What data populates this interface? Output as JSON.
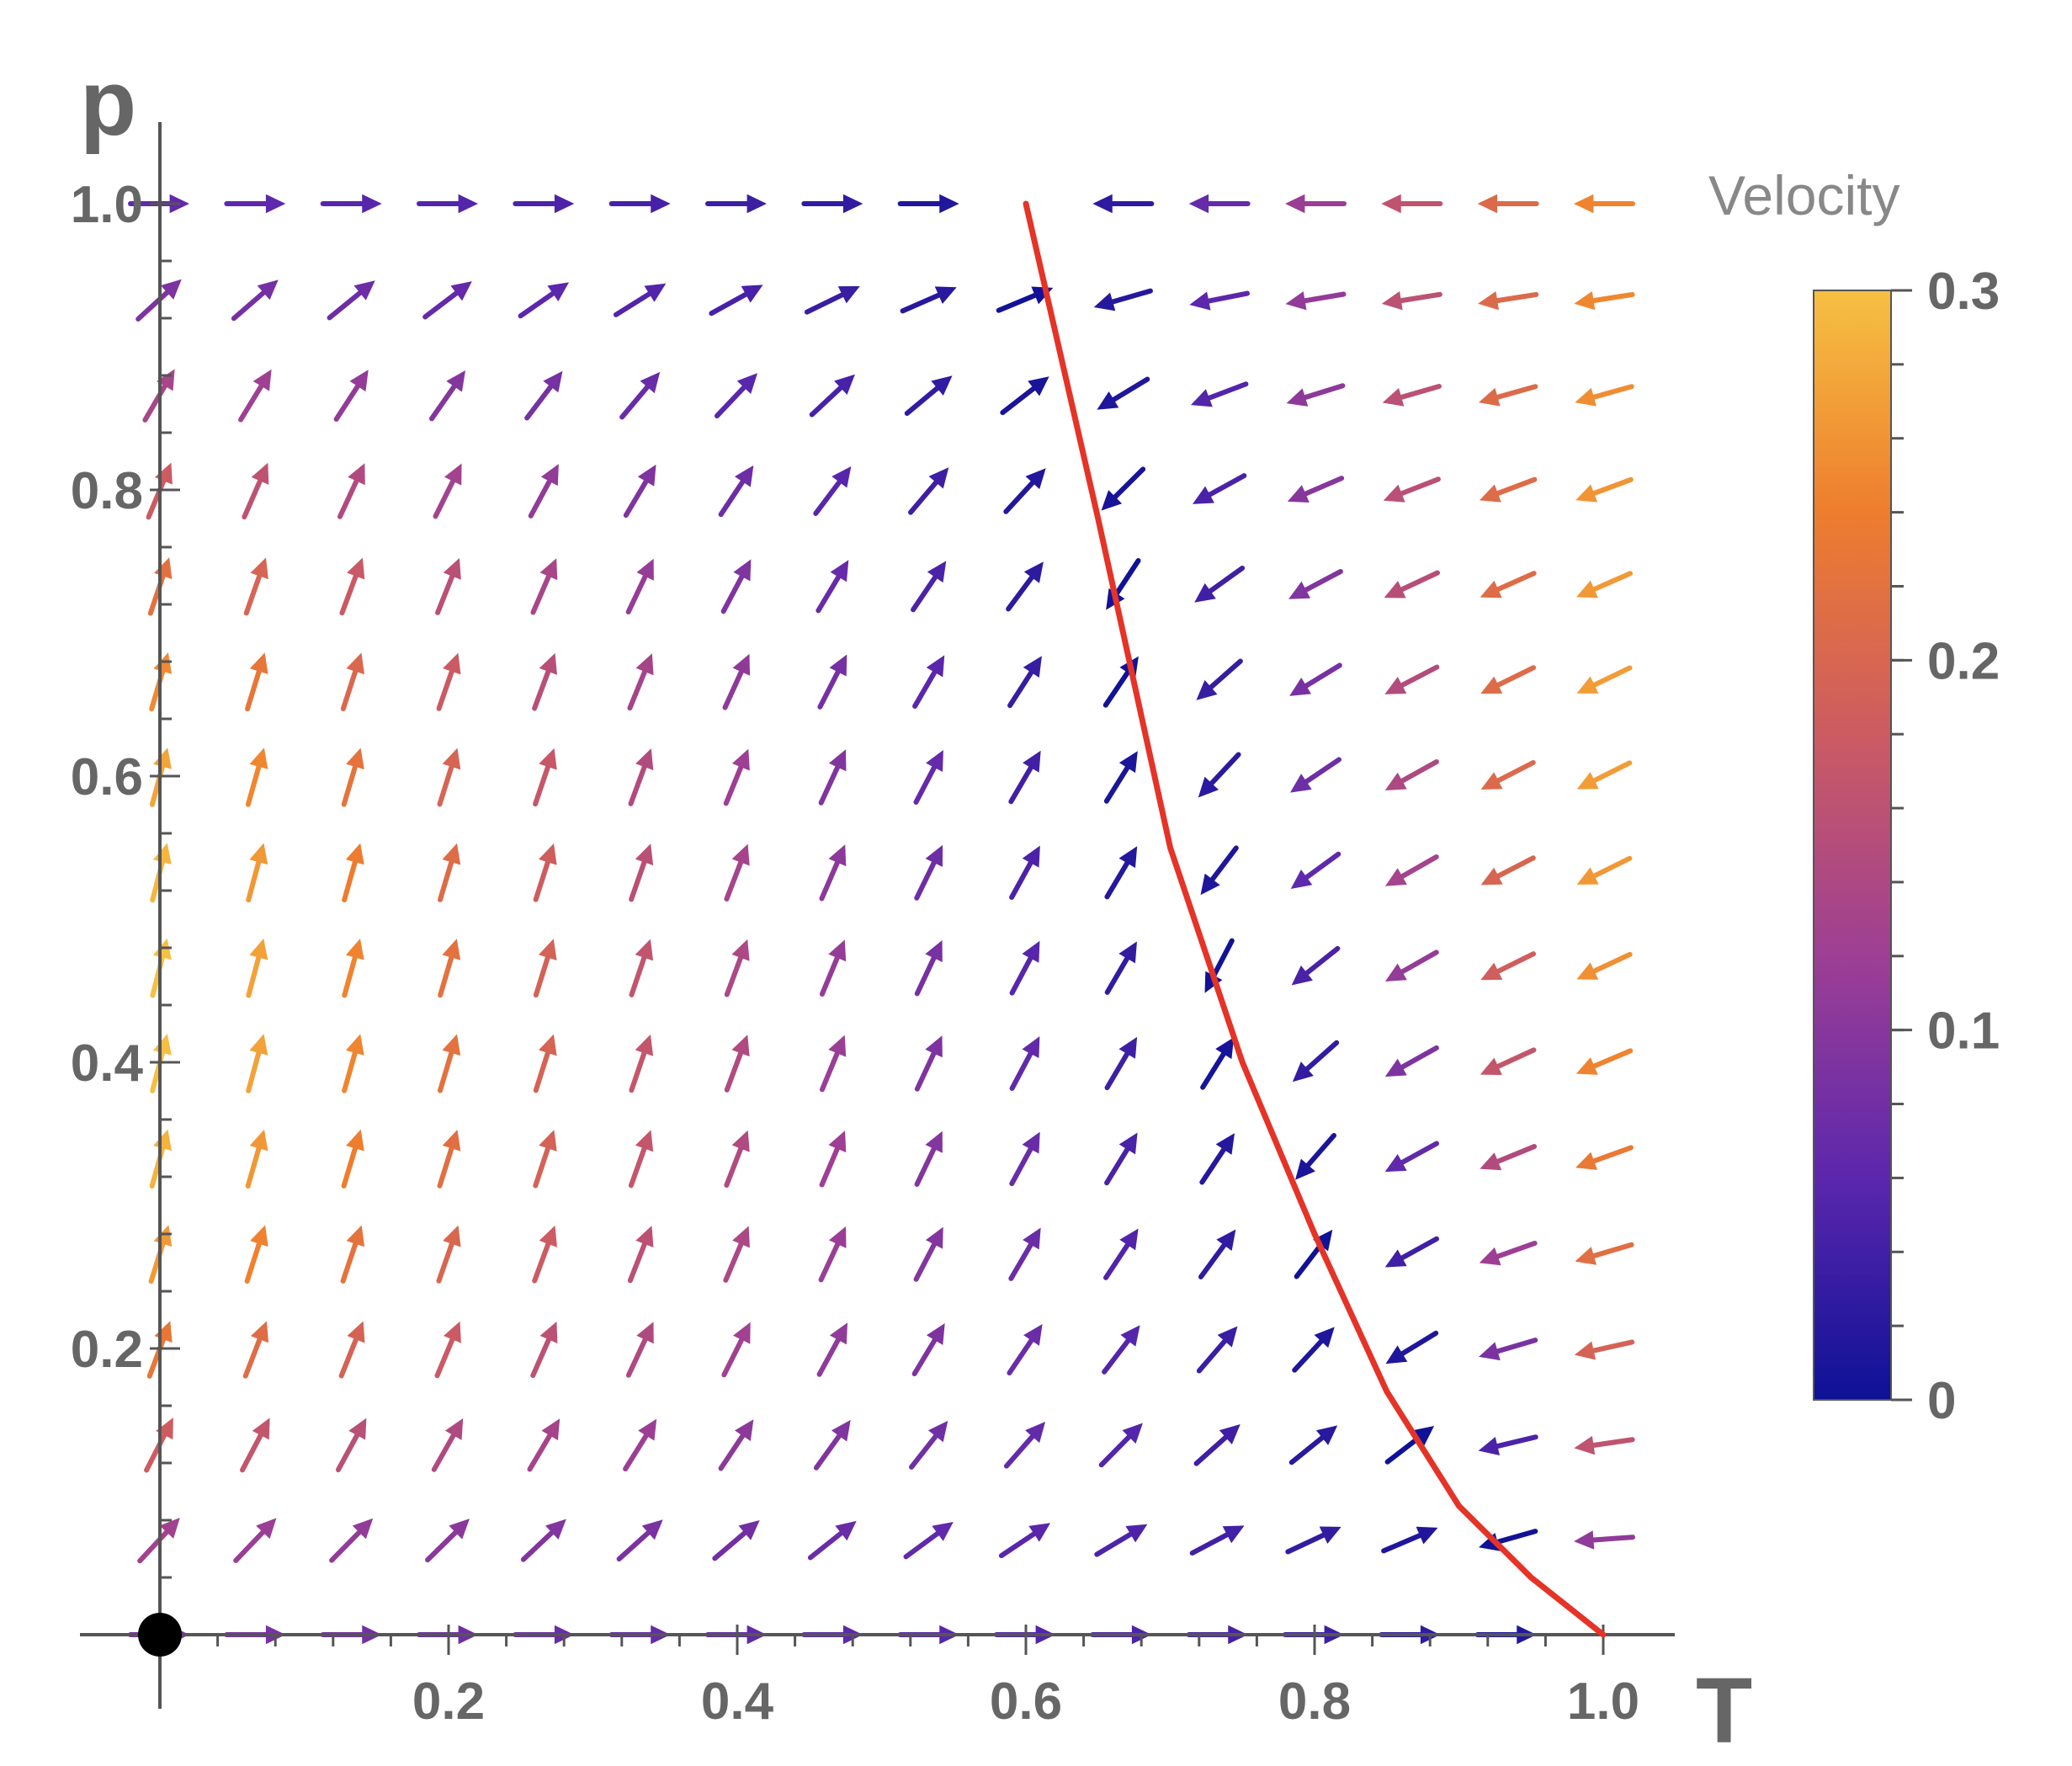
{
  "chart_data": {
    "type": "vector_field",
    "xlabel": "T",
    "ylabel": "p",
    "xlim": [
      0,
      1.0
    ],
    "ylim": [
      0,
      1.0
    ],
    "x_ticks": [
      "0.2",
      "0.4",
      "0.6",
      "0.8",
      "1.0"
    ],
    "y_ticks": [
      "0.2",
      "0.4",
      "0.6",
      "0.8",
      "1.0"
    ],
    "legend": {
      "title": "Velocity",
      "range": [
        0,
        0.3
      ],
      "tick_labels": [
        "0.3",
        "0.2",
        "0.1",
        "0"
      ],
      "colors": [
        "#0d1196",
        "#5b27ad",
        "#9d3f94",
        "#cc5b62",
        "#ee7d2e",
        "#f6c042"
      ]
    },
    "curve": {
      "color": "#e53327",
      "points": [
        [
          0.6,
          1.0
        ],
        [
          0.65,
          0.78
        ],
        [
          0.7,
          0.55
        ],
        [
          0.75,
          0.4
        ],
        [
          0.8,
          0.28
        ],
        [
          0.85,
          0.17
        ],
        [
          0.9,
          0.09
        ],
        [
          0.95,
          0.04
        ],
        [
          1.0,
          0.0
        ]
      ]
    },
    "fixed_point": {
      "x": 0,
      "y": 0,
      "color": "#000000"
    }
  }
}
